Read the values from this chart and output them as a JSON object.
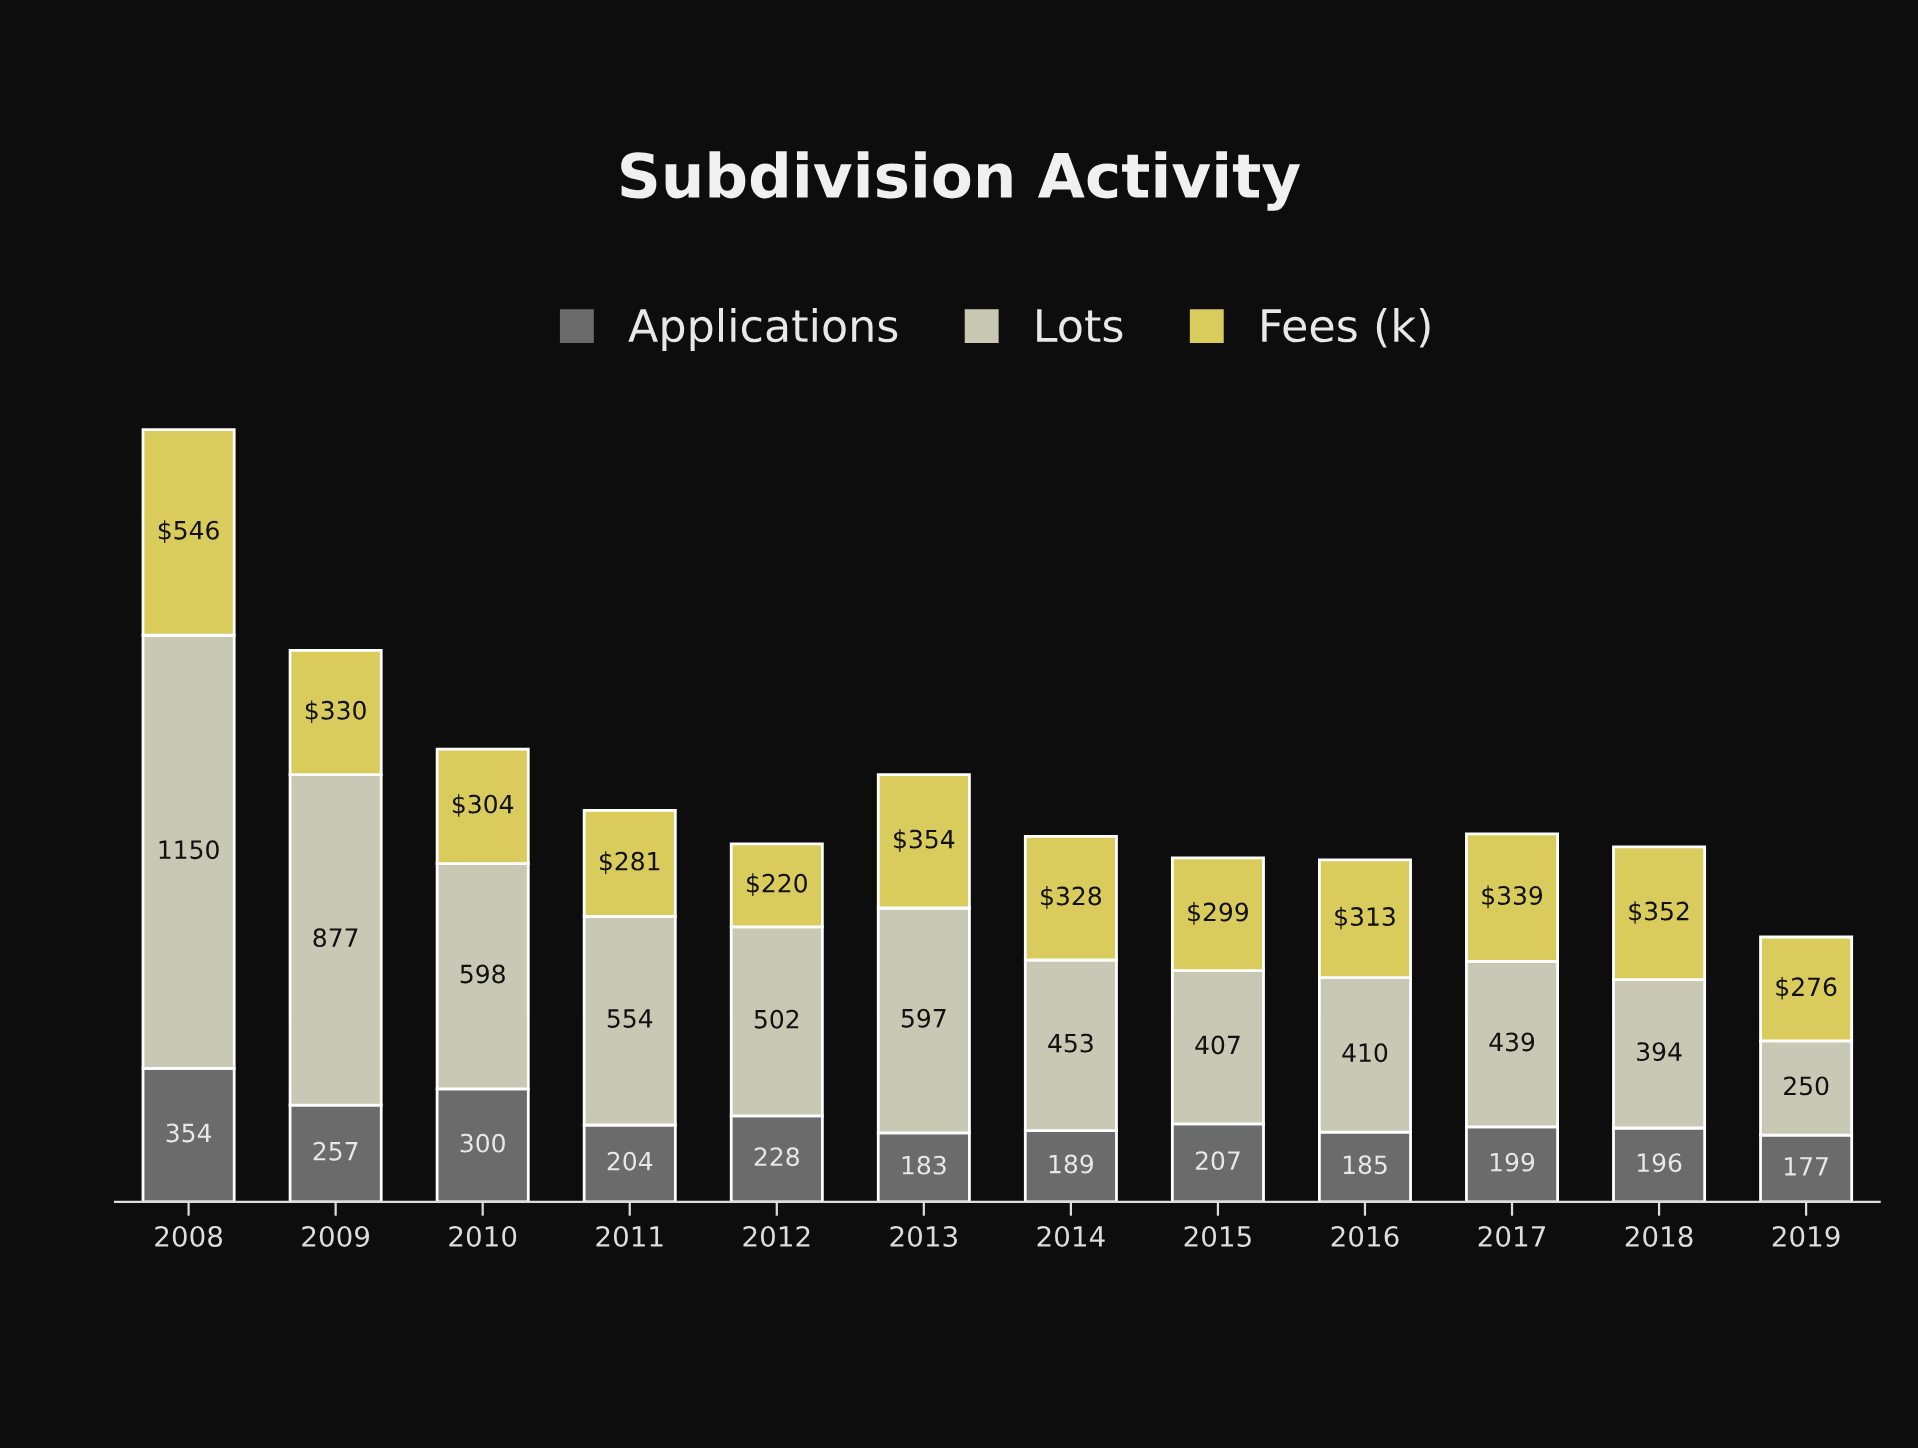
{
  "chart_data": {
    "type": "bar",
    "title": "Subdivision Activity",
    "stacked": true,
    "legend": "top",
    "categories": [
      "2008",
      "2009",
      "2010",
      "2011",
      "2012",
      "2013",
      "2014",
      "2015",
      "2016",
      "2017",
      "2018",
      "2019"
    ],
    "series": [
      {
        "name": "Applications",
        "color": "#6b6b6b",
        "values": [
          354,
          257,
          300,
          204,
          228,
          183,
          189,
          207,
          185,
          199,
          196,
          177
        ]
      },
      {
        "name": "Lots",
        "color": "#c9c8b4",
        "values": [
          1150,
          877,
          598,
          554,
          502,
          597,
          453,
          407,
          410,
          439,
          394,
          250
        ]
      },
      {
        "name": "Fees (k)",
        "color": "#d9cc5c",
        "values": [
          546,
          330,
          304,
          281,
          220,
          354,
          328,
          299,
          313,
          339,
          352,
          276
        ],
        "value_labels": [
          "$546",
          "$330",
          "$304",
          "$281",
          "$220",
          "$354",
          "$328",
          "$299",
          "$313",
          "$339",
          "$352",
          "$276"
        ]
      }
    ],
    "data_labels": true,
    "grid": false
  }
}
